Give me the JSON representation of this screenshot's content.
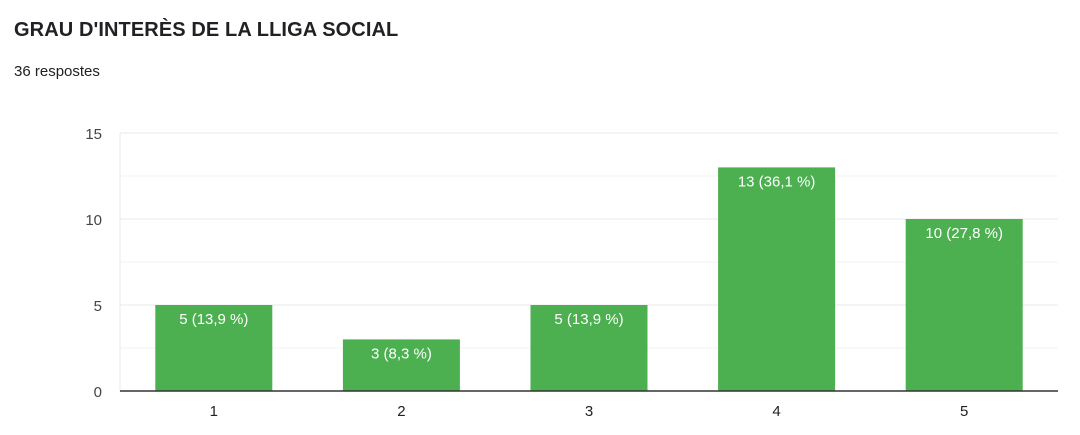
{
  "title": "GRAU D'INTERÈS DE LA LLIGA SOCIAL",
  "responses": "36 respostes",
  "chart_data": {
    "type": "bar",
    "categories": [
      "1",
      "2",
      "3",
      "4",
      "5"
    ],
    "values": [
      5,
      3,
      5,
      13,
      10
    ],
    "data_labels": [
      "5 (13,9 %)",
      "3 (8,3 %)",
      "5 (13,9 %)",
      "13 (36,1 %)",
      "10 (27,8 %)"
    ],
    "yticks": [
      0,
      5,
      10,
      15
    ],
    "ylim": [
      0,
      15
    ],
    "grid": true,
    "xlabel": "",
    "ylabel": "",
    "color": "#4caf50"
  }
}
